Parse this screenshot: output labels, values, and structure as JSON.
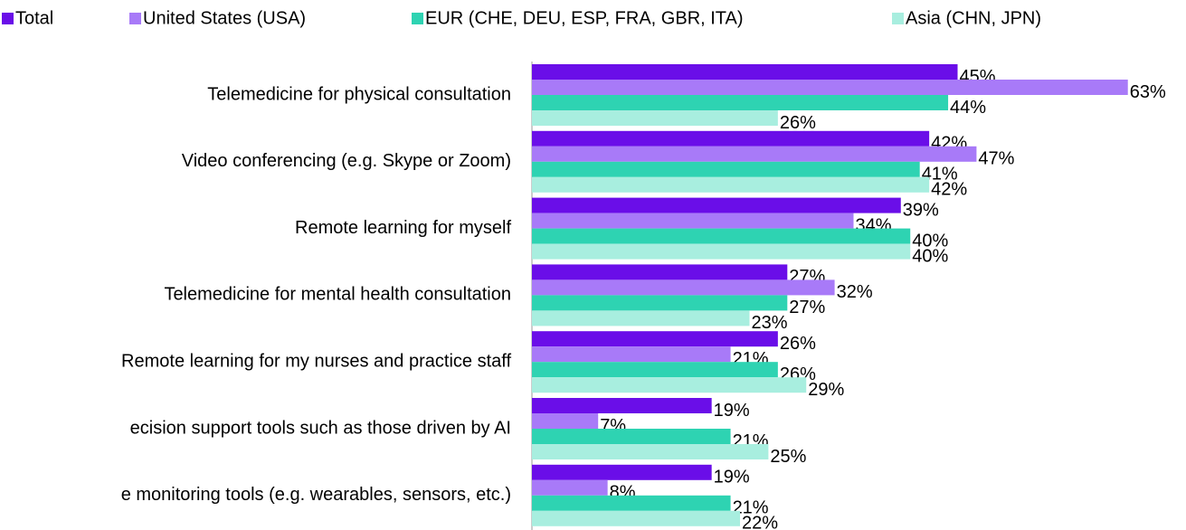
{
  "chart_data": {
    "type": "hbar",
    "categories": [
      "Telemedicine for physical consultation",
      "Video conferencing (e.g. Skype or Zoom)",
      "Remote learning for myself",
      "Telemedicine for mental health consultation",
      "Remote learning for my nurses and practice staff",
      "ecision support tools such as those driven by AI",
      "e monitoring tools (e.g. wearables, sensors, etc.)"
    ],
    "series": [
      {
        "name": "Total",
        "color": "#6a0ee8",
        "values": [
          45,
          42,
          39,
          27,
          26,
          19,
          19
        ],
        "value_labels": [
          "45%",
          "42%",
          "39%",
          "27%",
          "26%",
          "19%",
          "19%"
        ]
      },
      {
        "name": "United States (USA)",
        "color": "#a87af8",
        "values": [
          63,
          47,
          34,
          32,
          21,
          7,
          8
        ],
        "value_labels": [
          "63%",
          "47%",
          "34%",
          "32%",
          "21%",
          "7%",
          "8%"
        ]
      },
      {
        "name": "EUR (CHE, DEU, ESP, FRA, GBR, ITA)",
        "color": "#2ed3b2",
        "values": [
          44,
          41,
          40,
          27,
          26,
          21,
          21
        ],
        "value_labels": [
          "44%",
          "41%",
          "40%",
          "27%",
          "26%",
          "21%",
          "21%"
        ]
      },
      {
        "name": "Asia (CHN, JPN)",
        "color": "#a8eedf",
        "values": [
          26,
          42,
          40,
          23,
          29,
          25,
          22
        ],
        "value_labels": [
          "26%",
          "42%",
          "40%",
          "23%",
          "29%",
          "25%",
          "22%"
        ]
      }
    ],
    "xlim": [
      0,
      68
    ],
    "legend": "top"
  }
}
